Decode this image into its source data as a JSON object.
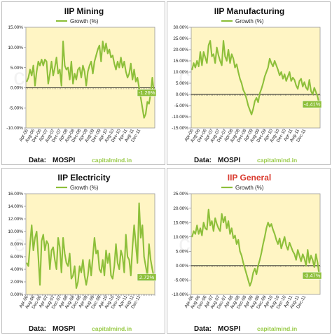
{
  "colors": {
    "line": "#8dbf3a",
    "plot_bg": "#fff5c4",
    "callout_bg": "#8dbf3a",
    "title_default": "#111111",
    "title_general": "#d93a2e",
    "site_text": "#9acb4a"
  },
  "footer": {
    "source_prefix": "Data:",
    "source": "MOSPI",
    "site": "capitalmind.in"
  },
  "watermark": "capitalmind.in",
  "chart_data": [
    {
      "type": "line",
      "title": "IIP Mining",
      "legend": "Growth (%)",
      "ylim": [
        -10,
        15
      ],
      "yticks": [
        "15.00%",
        "10.00%",
        "5.00%",
        "0.00%",
        "-5.00%",
        "-10.00%"
      ],
      "xtick_labels": [
        "Apr-06",
        "Aug-06",
        "Dec-06",
        "Apr-07",
        "Aug-07",
        "Dec-07",
        "Apr-08",
        "Aug-08",
        "Dec-08",
        "Apr-09",
        "Aug-09",
        "Dec-09",
        "Apr-10",
        "Aug-10",
        "Dec-10",
        "Apr-11",
        "Aug-11",
        "Dec-11"
      ],
      "last_label": "-1.26%",
      "series": [
        {
          "values": [
            1.5,
            2.5,
            4.5,
            3.0,
            5.5,
            0.5,
            4.0,
            6.5,
            5.5,
            7.0,
            5.5,
            7.0,
            6.5,
            1.0,
            3.5,
            6.5,
            3.0,
            5.0,
            7.5,
            3.5,
            4.5,
            0.5,
            11.5,
            5.5,
            4.5,
            5.0,
            2.0,
            6.5,
            1.0,
            3.5,
            2.0,
            4.5,
            5.0,
            2.5,
            5.5,
            4.0,
            0.5,
            4.0,
            5.5,
            6.5,
            3.5,
            6.5,
            8.0,
            9.5,
            10.5,
            6.5,
            11.5,
            9.0,
            11.0,
            8.5,
            9.5,
            7.5,
            8.0,
            6.0,
            4.5,
            6.5,
            5.0,
            7.5,
            5.0,
            6.5,
            4.0,
            2.5,
            3.5,
            6.0,
            2.0,
            4.5,
            1.5,
            2.5,
            0.0,
            -2.5,
            -5.0,
            -7.5,
            -6.5,
            -3.5,
            -4.0,
            -1.5,
            2.5,
            -1.26
          ]
        }
      ]
    },
    {
      "type": "line",
      "title": "IIP Manufacturing",
      "legend": "Growth (%)",
      "ylim": [
        -15,
        30
      ],
      "yticks": [
        "30.00%",
        "25.00%",
        "20.00%",
        "15.00%",
        "10.00%",
        "5.00%",
        "0.00%",
        "-5.00%",
        "-10.00%",
        "-15.00%"
      ],
      "xtick_labels": [
        "Apr-06",
        "Aug-06",
        "Dec-06",
        "Apr-07",
        "Aug-07",
        "Dec-07",
        "Apr-08",
        "Aug-08",
        "Dec-08",
        "Apr-09",
        "Aug-09",
        "Dec-09",
        "Apr-10",
        "Aug-10",
        "Dec-10",
        "Apr-11",
        "Aug-11",
        "Dec-11"
      ],
      "last_label": "-4.41%",
      "series": [
        {
          "values": [
            11.0,
            14.0,
            12.0,
            15.0,
            12.5,
            19.0,
            13.0,
            19.0,
            16.5,
            14.0,
            22.0,
            24.0,
            17.0,
            18.0,
            14.0,
            21.0,
            17.5,
            15.0,
            13.0,
            24.0,
            17.0,
            15.0,
            20.0,
            14.0,
            18.0,
            16.0,
            12.0,
            13.5,
            10.0,
            7.0,
            5.0,
            2.0,
            0.5,
            -2.0,
            -5.0,
            -7.0,
            -9.0,
            -6.5,
            -3.0,
            -1.5,
            -3.5,
            0.5,
            2.5,
            5.0,
            8.0,
            10.0,
            12.0,
            16.0,
            14.0,
            12.5,
            15.0,
            13.0,
            11.0,
            8.5,
            10.0,
            7.0,
            9.0,
            6.0,
            8.0,
            10.0,
            6.0,
            7.5,
            6.5,
            4.0,
            2.5,
            6.0,
            7.0,
            3.5,
            5.5,
            3.0,
            2.0,
            6.5,
            1.5,
            0.0,
            3.0,
            1.0,
            -1.0,
            -4.41
          ]
        }
      ]
    },
    {
      "type": "line",
      "title": "IIP Electricity",
      "legend": "Growth (%)",
      "ylim": [
        0,
        16
      ],
      "yticks": [
        "16.00%",
        "14.00%",
        "12.00%",
        "10.00%",
        "8.00%",
        "6.00%",
        "4.00%",
        "2.00%",
        "0.00%"
      ],
      "xtick_labels": [
        "Apr-06",
        "Aug-06",
        "Dec-06",
        "Apr-07",
        "Aug-07",
        "Dec-07",
        "Apr-08",
        "Aug-08",
        "Dec-08",
        "Apr-09",
        "Aug-09",
        "Dec-09",
        "Apr-10",
        "Aug-10",
        "Dec-10",
        "Apr-11",
        "Aug-11",
        "Dec-11"
      ],
      "last_label": "2.72%",
      "series": [
        {
          "values": [
            5.0,
            4.5,
            8.0,
            11.0,
            7.0,
            9.0,
            10.0,
            6.0,
            1.5,
            8.5,
            9.5,
            7.0,
            8.5,
            8.0,
            4.0,
            7.0,
            7.5,
            5.5,
            4.0,
            9.0,
            7.5,
            3.5,
            9.0,
            6.5,
            5.0,
            4.5,
            6.5,
            2.5,
            3.0,
            4.5,
            1.0,
            2.0,
            4.5,
            3.5,
            5.5,
            3.0,
            1.5,
            3.0,
            5.5,
            3.0,
            6.0,
            9.0,
            6.5,
            7.0,
            4.0,
            3.5,
            5.5,
            3.0,
            7.0,
            5.0,
            6.5,
            3.0,
            2.5,
            4.5,
            8.0,
            5.0,
            4.0,
            7.0,
            6.0,
            3.5,
            9.5,
            6.0,
            5.5,
            3.0,
            7.5,
            11.0,
            8.0,
            5.0,
            14.5,
            9.0,
            11.0,
            6.0,
            4.5,
            3.0,
            8.0,
            5.5,
            4.0,
            2.72
          ]
        }
      ]
    },
    {
      "type": "line",
      "title": "IIP General",
      "legend": "Growth (%)",
      "ylim": [
        -10,
        25
      ],
      "yticks": [
        "25.00%",
        "20.00%",
        "15.00%",
        "10.00%",
        "5.00%",
        "0.00%",
        "-5.00%",
        "-10.00%"
      ],
      "xtick_labels": [
        "Apr-06",
        "Aug-06",
        "Dec-06",
        "Apr-07",
        "Aug-07",
        "Dec-07",
        "Apr-08",
        "Aug-08",
        "Dec-08",
        "Apr-09",
        "Aug-09",
        "Dec-09",
        "Apr-10",
        "Aug-10",
        "Dec-10",
        "Apr-11",
        "Aug-11",
        "Dec-11"
      ],
      "last_label": "-3.47%",
      "series": [
        {
          "values": [
            10.0,
            12.0,
            11.0,
            14.0,
            11.0,
            13.0,
            10.5,
            15.0,
            13.0,
            12.5,
            19.5,
            14.0,
            15.5,
            12.0,
            16.5,
            14.5,
            13.0,
            12.0,
            18.0,
            15.0,
            17.0,
            13.0,
            15.5,
            11.0,
            13.0,
            9.5,
            10.5,
            7.5,
            9.0,
            5.0,
            3.5,
            1.0,
            -1.0,
            -3.0,
            -5.0,
            -7.0,
            -5.5,
            -2.5,
            -1.0,
            -3.0,
            0.0,
            2.0,
            4.5,
            7.5,
            10.0,
            13.0,
            15.0,
            13.5,
            14.5,
            12.5,
            11.0,
            9.0,
            7.5,
            9.5,
            6.0,
            8.0,
            10.0,
            7.0,
            5.5,
            8.0,
            6.5,
            5.0,
            4.0,
            2.0,
            5.5,
            3.5,
            1.5,
            4.0,
            2.5,
            0.0,
            5.5,
            1.0,
            3.5,
            2.0,
            -0.5,
            4.0,
            1.0,
            -3.47
          ]
        }
      ]
    }
  ]
}
